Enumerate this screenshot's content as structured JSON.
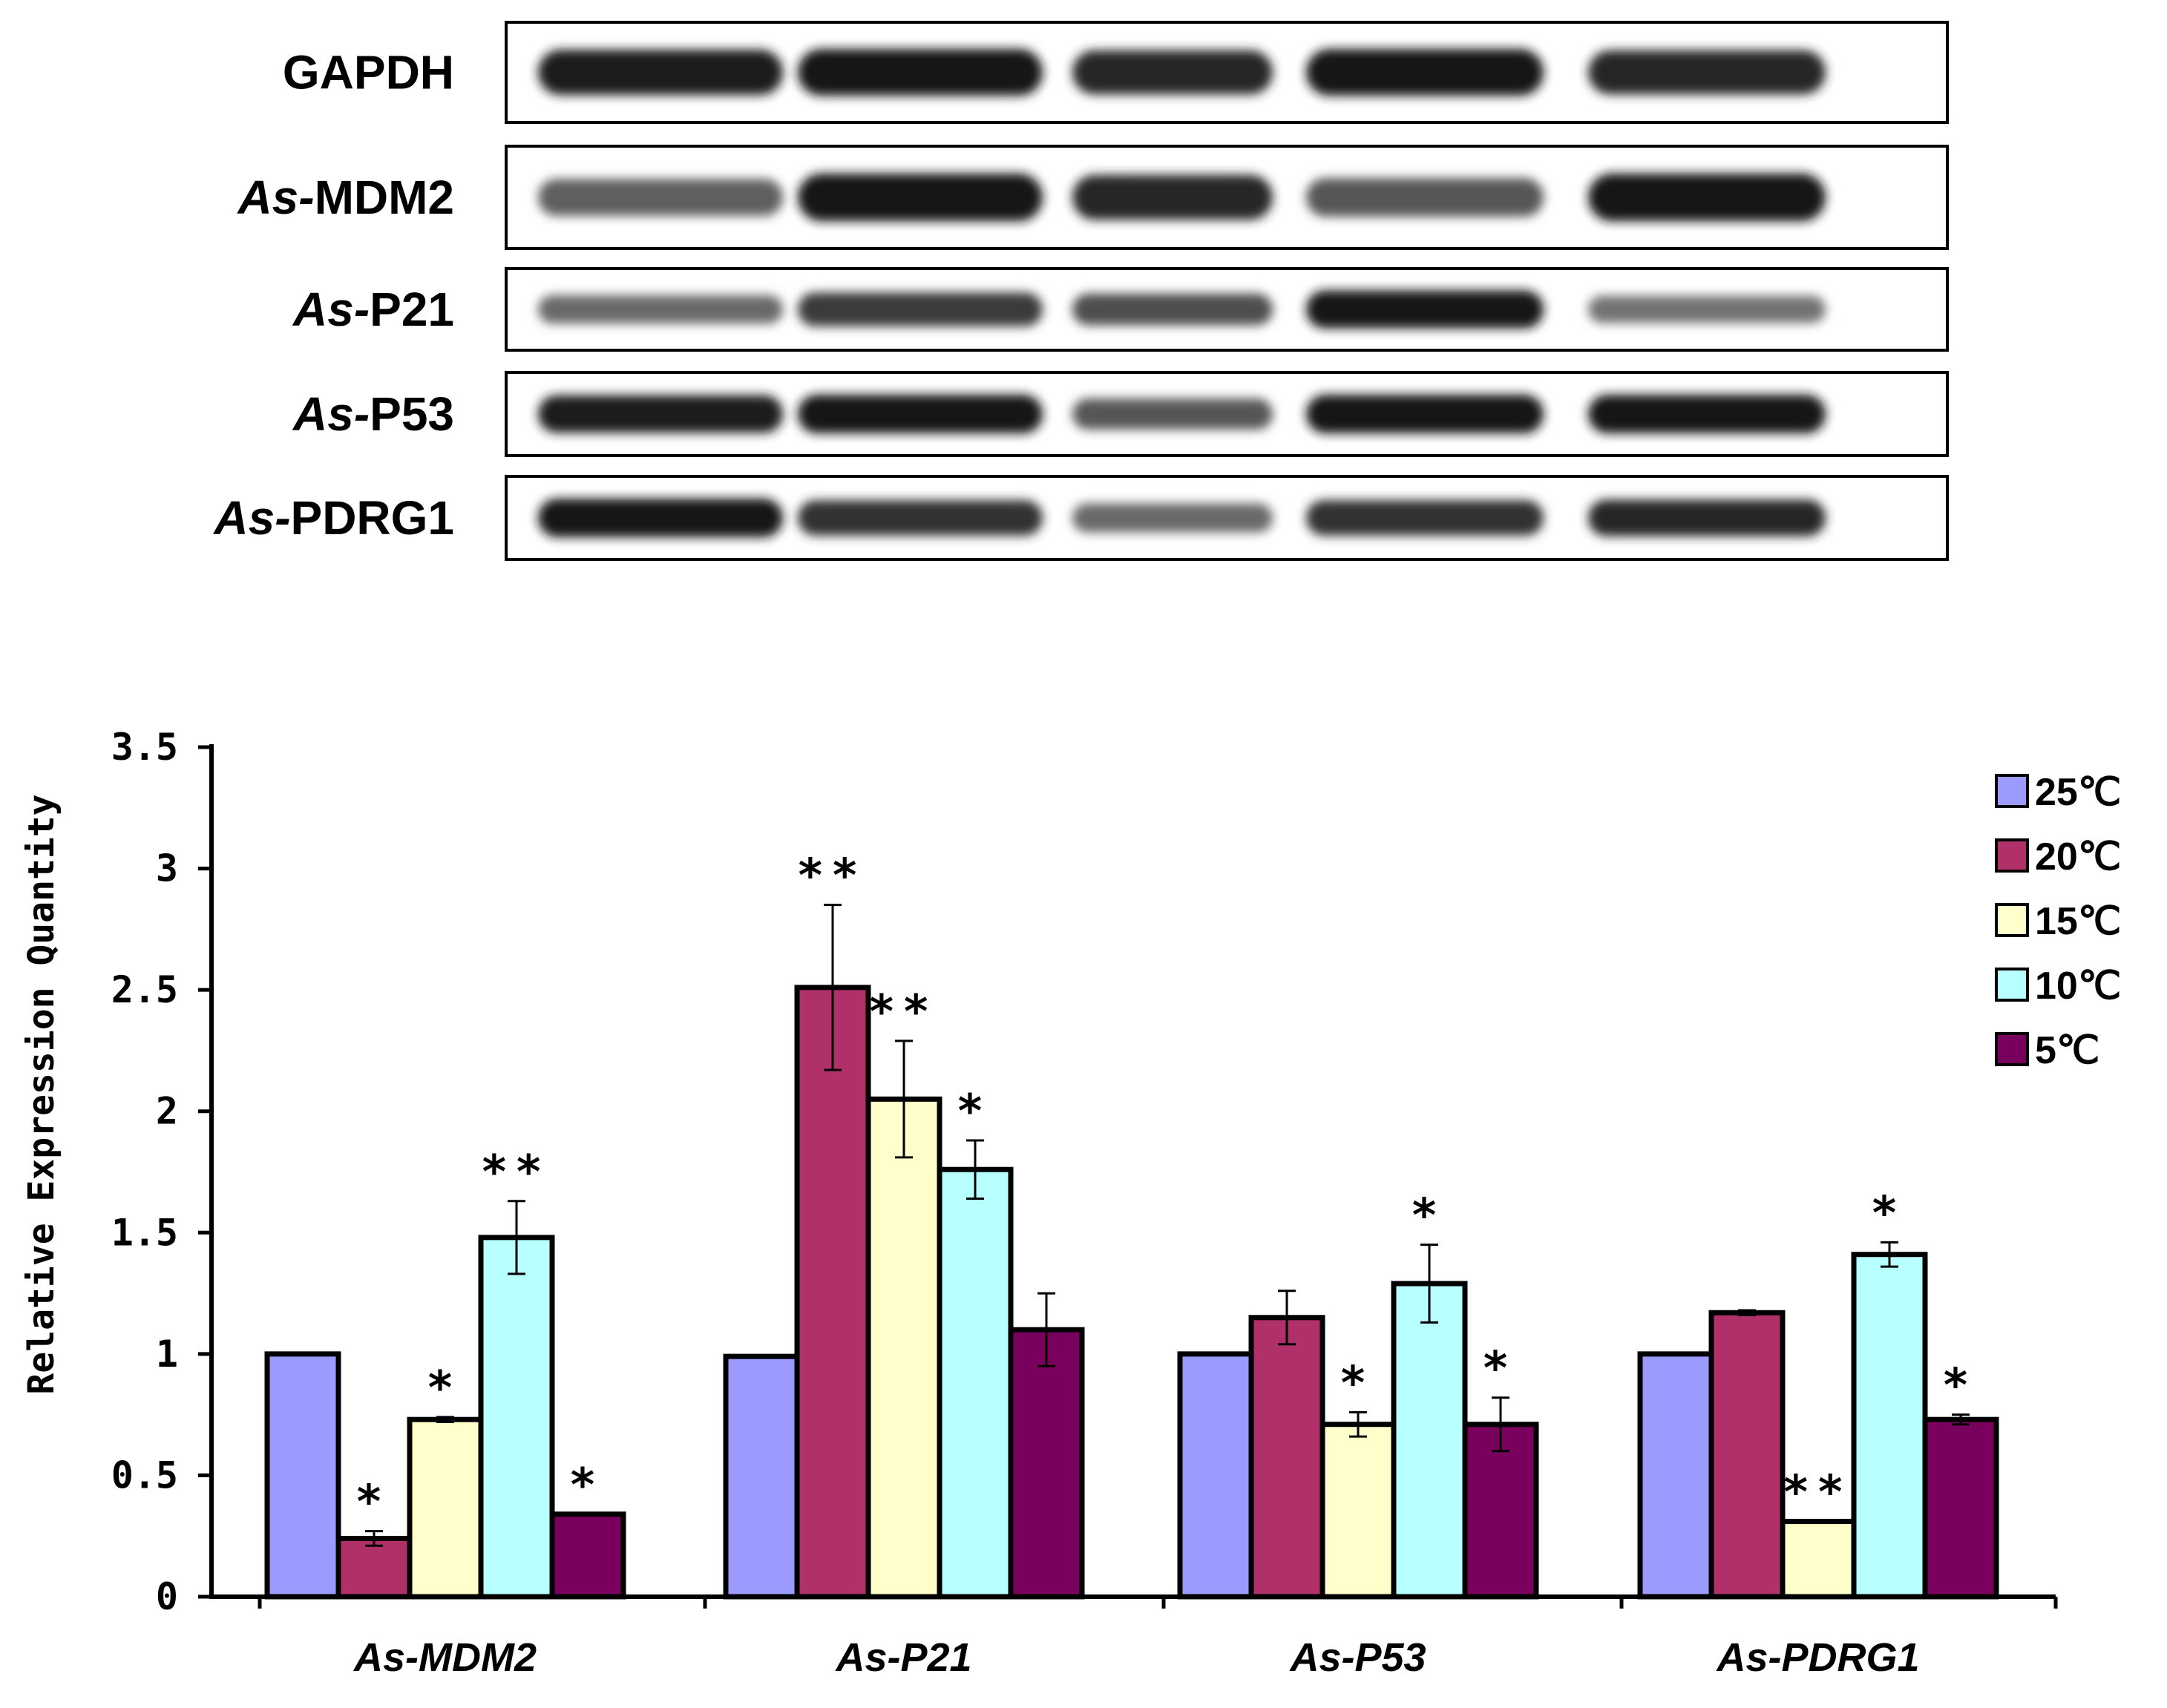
{
  "blot": {
    "lanes": 5,
    "rows": [
      {
        "prefix": "",
        "name": "GAPDH",
        "intensity": [
          0.9,
          0.95,
          0.85,
          0.95,
          0.85
        ]
      },
      {
        "prefix": "As-",
        "name": "MDM2",
        "intensity": [
          0.55,
          0.95,
          0.85,
          0.6,
          0.95
        ]
      },
      {
        "prefix": "As-",
        "name": "P21",
        "intensity": [
          0.5,
          0.75,
          0.65,
          0.95,
          0.45
        ]
      },
      {
        "prefix": "As-",
        "name": "P53",
        "intensity": [
          0.9,
          0.95,
          0.6,
          0.95,
          0.95
        ]
      },
      {
        "prefix": "As-",
        "name": "PDRG1",
        "intensity": [
          0.95,
          0.8,
          0.5,
          0.8,
          0.85
        ]
      }
    ]
  },
  "colors": {
    "c25": "#9A9AFF",
    "c20": "#B0306A",
    "c15": "#FFFFCC",
    "c10": "#B8FFFF",
    "c5": "#7A005E"
  },
  "chart_data": {
    "type": "bar",
    "ylabel": "Relative Expression Quantity",
    "ylim": [
      0,
      3.5
    ],
    "yticks": [
      "0",
      "0.5",
      "1",
      "1.5",
      "2",
      "2.5",
      "3",
      "3.5"
    ],
    "categories": [
      "As-MDM2",
      "As-P21",
      "As-P53",
      "As-PDRG1"
    ],
    "legend_position": "top-right",
    "series": [
      {
        "name": "25℃",
        "color_key": "c25",
        "values": [
          1.0,
          0.99,
          1.0,
          1.0
        ],
        "errors": [
          0,
          0,
          0,
          0
        ],
        "sig": [
          "",
          "",
          "",
          ""
        ]
      },
      {
        "name": "20℃",
        "color_key": "c20",
        "values": [
          0.24,
          2.51,
          1.15,
          1.17
        ],
        "errors": [
          0.03,
          0.34,
          0.11,
          0.01
        ],
        "sig": [
          "*",
          "**",
          "",
          ""
        ]
      },
      {
        "name": "15℃",
        "color_key": "c15",
        "values": [
          0.73,
          2.05,
          0.71,
          0.31
        ],
        "errors": [
          0.01,
          0.24,
          0.05,
          0.0
        ],
        "sig": [
          "*",
          "**",
          "*",
          "**"
        ]
      },
      {
        "name": "10℃",
        "color_key": "c10",
        "values": [
          1.48,
          1.76,
          1.29,
          1.41
        ],
        "errors": [
          0.15,
          0.12,
          0.16,
          0.05
        ],
        "sig": [
          "**",
          "*",
          "*",
          "*"
        ]
      },
      {
        "name": "5℃",
        "color_key": "c5",
        "values": [
          0.34,
          1.1,
          0.71,
          0.73
        ],
        "errors": [
          0.0,
          0.15,
          0.11,
          0.02
        ],
        "sig": [
          "*",
          "",
          "*",
          "*"
        ]
      }
    ]
  }
}
